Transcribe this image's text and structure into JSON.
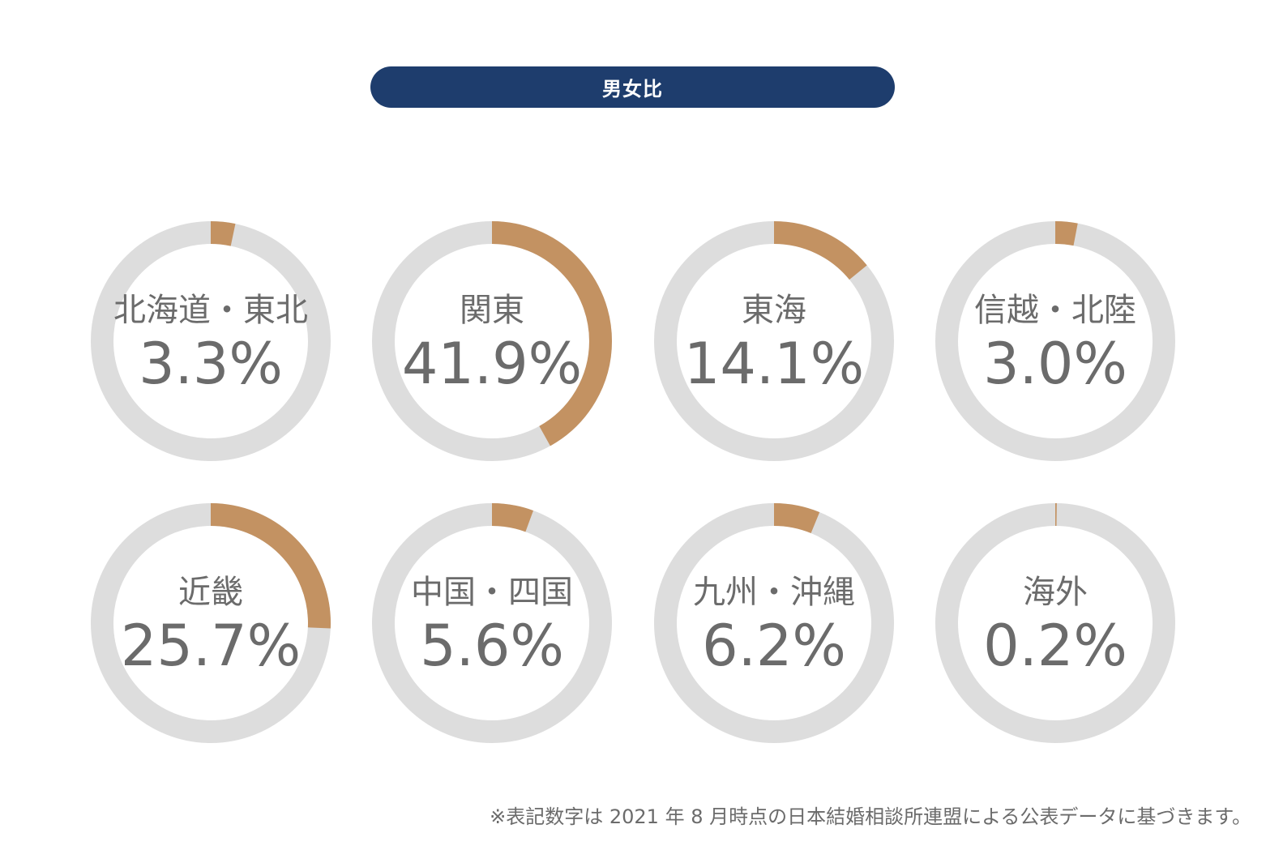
{
  "title": "男女比",
  "colors": {
    "accent": "#c39262",
    "track": "#dddddd",
    "title_bg": "#1e3d6d",
    "text": "#6b6b6b"
  },
  "chart_data": {
    "type": "donut",
    "categories": [
      "北海道・東北",
      "関東",
      "東海",
      "信越・北陸",
      "近畿",
      "中国・四国",
      "九州・沖縄",
      "海外"
    ],
    "values": [
      3.3,
      41.9,
      14.1,
      3.0,
      25.7,
      5.6,
      6.2,
      0.2
    ],
    "value_labels": [
      "3.3%",
      "41.9%",
      "14.1%",
      "3.0%",
      "25.7%",
      "5.6%",
      "6.2%",
      "0.2%"
    ],
    "unit": "%"
  },
  "footnote": "※表記数字は 2021 年 8 月時点の日本結婚相談所連盟による公表データに基づきます。"
}
